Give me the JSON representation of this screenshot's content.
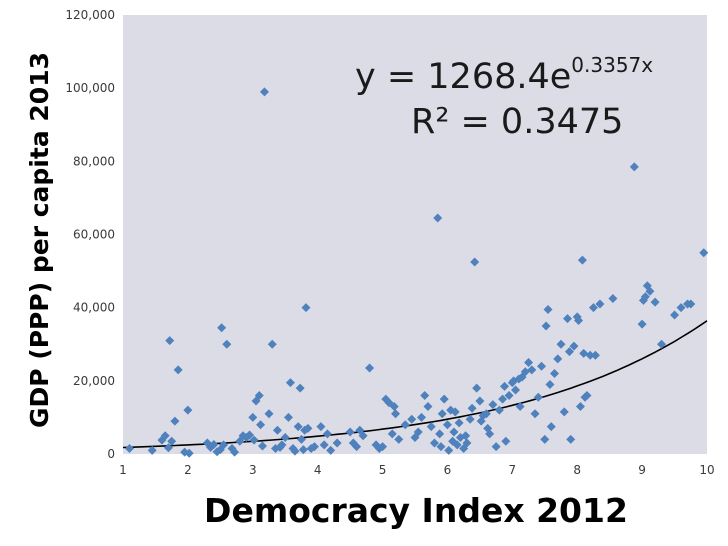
{
  "chart_data": {
    "type": "scatter",
    "title": "",
    "xlabel": "Democracy Index 2012",
    "ylabel": "GDP (PPP) per capita 2013",
    "xlim": [
      1,
      10
    ],
    "ylim": [
      0,
      120000
    ],
    "x_ticks": [
      1,
      2,
      3,
      4,
      5,
      6,
      7,
      8,
      9,
      10
    ],
    "y_ticks": [
      0,
      20000,
      40000,
      60000,
      80000,
      100000,
      120000
    ],
    "y_tick_labels": [
      "0",
      "20,000",
      "40,000",
      "60,000",
      "80,000",
      "100,000",
      "120,000"
    ],
    "grid": false,
    "legend": "none",
    "marker_color": "#4f81bd",
    "plot_background": "#dcdce6",
    "trendline": {
      "type": "exponential",
      "a": 1268.4,
      "b": 0.3357,
      "color": "#000000",
      "equation_prefix": "y = 1268.4e",
      "equation_exponent": "0.3357x",
      "r2_label": "R² = 0.3475"
    },
    "points": [
      [
        1.1,
        1500
      ],
      [
        1.45,
        1000
      ],
      [
        1.6,
        3800
      ],
      [
        1.65,
        5000
      ],
      [
        1.7,
        1700
      ],
      [
        1.72,
        31000
      ],
      [
        1.75,
        3500
      ],
      [
        1.8,
        9000
      ],
      [
        1.85,
        23000
      ],
      [
        1.95,
        500
      ],
      [
        2.0,
        12000
      ],
      [
        2.02,
        200
      ],
      [
        2.3,
        3000
      ],
      [
        2.35,
        1800
      ],
      [
        2.4,
        2600
      ],
      [
        2.45,
        600
      ],
      [
        2.5,
        1200
      ],
      [
        2.52,
        34500
      ],
      [
        2.55,
        2500
      ],
      [
        2.6,
        30000
      ],
      [
        2.68,
        1500
      ],
      [
        2.72,
        500
      ],
      [
        2.8,
        3500
      ],
      [
        2.85,
        5000
      ],
      [
        2.9,
        4500
      ],
      [
        2.95,
        5200
      ],
      [
        3.0,
        10000
      ],
      [
        3.02,
        3800
      ],
      [
        3.05,
        14500
      ],
      [
        3.1,
        16000
      ],
      [
        3.12,
        8000
      ],
      [
        3.15,
        2200
      ],
      [
        3.18,
        99000
      ],
      [
        3.25,
        11000
      ],
      [
        3.3,
        30000
      ],
      [
        3.35,
        1500
      ],
      [
        3.38,
        6500
      ],
      [
        3.42,
        1800
      ],
      [
        3.45,
        2500
      ],
      [
        3.5,
        4500
      ],
      [
        3.55,
        10000
      ],
      [
        3.58,
        19500
      ],
      [
        3.62,
        1500
      ],
      [
        3.65,
        800
      ],
      [
        3.7,
        7500
      ],
      [
        3.73,
        18000
      ],
      [
        3.75,
        4000
      ],
      [
        3.78,
        1200
      ],
      [
        3.8,
        6500
      ],
      [
        3.82,
        40000
      ],
      [
        3.85,
        7000
      ],
      [
        3.9,
        1500
      ],
      [
        3.95,
        2000
      ],
      [
        4.05,
        7500
      ],
      [
        4.1,
        2500
      ],
      [
        4.15,
        5500
      ],
      [
        4.2,
        1000
      ],
      [
        4.3,
        3000
      ],
      [
        4.5,
        6000
      ],
      [
        4.55,
        3000
      ],
      [
        4.6,
        2000
      ],
      [
        4.65,
        6500
      ],
      [
        4.7,
        5000
      ],
      [
        4.8,
        23500
      ],
      [
        4.9,
        2500
      ],
      [
        4.95,
        1500
      ],
      [
        5.0,
        2000
      ],
      [
        5.05,
        15000
      ],
      [
        5.1,
        14000
      ],
      [
        5.15,
        5500
      ],
      [
        5.18,
        13000
      ],
      [
        5.2,
        11000
      ],
      [
        5.25,
        4000
      ],
      [
        5.35,
        8000
      ],
      [
        5.45,
        9500
      ],
      [
        5.5,
        4500
      ],
      [
        5.55,
        6000
      ],
      [
        5.6,
        10000
      ],
      [
        5.65,
        16000
      ],
      [
        5.7,
        13000
      ],
      [
        5.75,
        7500
      ],
      [
        5.8,
        3000
      ],
      [
        5.85,
        64500
      ],
      [
        5.88,
        5500
      ],
      [
        5.9,
        2000
      ],
      [
        5.92,
        11000
      ],
      [
        5.95,
        15000
      ],
      [
        6.0,
        8000
      ],
      [
        6.02,
        1000
      ],
      [
        6.05,
        12000
      ],
      [
        6.08,
        3500
      ],
      [
        6.1,
        6000
      ],
      [
        6.12,
        11500
      ],
      [
        6.15,
        2500
      ],
      [
        6.18,
        8500
      ],
      [
        6.2,
        4500
      ],
      [
        6.25,
        1500
      ],
      [
        6.28,
        5000
      ],
      [
        6.3,
        3000
      ],
      [
        6.35,
        9500
      ],
      [
        6.38,
        12500
      ],
      [
        6.42,
        52500
      ],
      [
        6.45,
        18000
      ],
      [
        6.5,
        14500
      ],
      [
        6.52,
        9000
      ],
      [
        6.55,
        10500
      ],
      [
        6.6,
        11000
      ],
      [
        6.62,
        7000
      ],
      [
        6.65,
        5500
      ],
      [
        6.7,
        13500
      ],
      [
        6.75,
        2000
      ],
      [
        6.8,
        12000
      ],
      [
        6.85,
        15000
      ],
      [
        6.88,
        18500
      ],
      [
        6.9,
        3500
      ],
      [
        6.95,
        16000
      ],
      [
        7.0,
        19500
      ],
      [
        7.02,
        20000
      ],
      [
        7.05,
        17500
      ],
      [
        7.1,
        20500
      ],
      [
        7.12,
        13000
      ],
      [
        7.15,
        21000
      ],
      [
        7.2,
        22500
      ],
      [
        7.25,
        25000
      ],
      [
        7.3,
        23000
      ],
      [
        7.35,
        11000
      ],
      [
        7.4,
        15500
      ],
      [
        7.45,
        24000
      ],
      [
        7.5,
        4000
      ],
      [
        7.52,
        35000
      ],
      [
        7.55,
        39500
      ],
      [
        7.58,
        19000
      ],
      [
        7.6,
        7500
      ],
      [
        7.65,
        22000
      ],
      [
        7.7,
        26000
      ],
      [
        7.75,
        30000
      ],
      [
        7.8,
        11500
      ],
      [
        7.85,
        37000
      ],
      [
        7.88,
        28000
      ],
      [
        7.9,
        4000
      ],
      [
        7.95,
        29500
      ],
      [
        8.0,
        37500
      ],
      [
        8.02,
        36500
      ],
      [
        8.05,
        13000
      ],
      [
        8.08,
        53000
      ],
      [
        8.1,
        27500
      ],
      [
        8.12,
        15500
      ],
      [
        8.15,
        16000
      ],
      [
        8.2,
        27000
      ],
      [
        8.25,
        40000
      ],
      [
        8.28,
        27000
      ],
      [
        8.35,
        41000
      ],
      [
        8.55,
        42500
      ],
      [
        8.88,
        78500
      ],
      [
        9.0,
        35500
      ],
      [
        9.02,
        42000
      ],
      [
        9.05,
        43000
      ],
      [
        9.08,
        46000
      ],
      [
        9.12,
        44500
      ],
      [
        9.2,
        41500
      ],
      [
        9.3,
        30000
      ],
      [
        9.5,
        38000
      ],
      [
        9.6,
        40000
      ],
      [
        9.7,
        41000
      ],
      [
        9.75,
        41000
      ],
      [
        9.95,
        55000
      ]
    ]
  }
}
